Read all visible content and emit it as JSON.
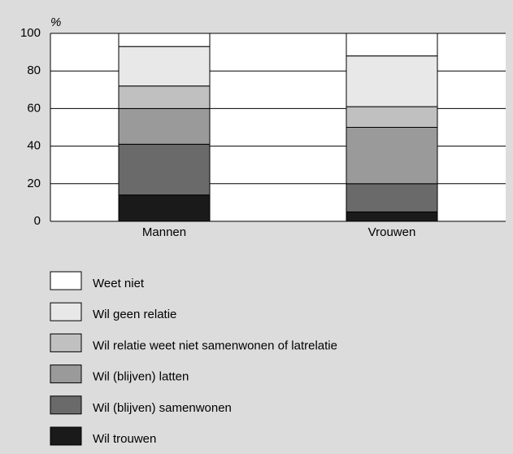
{
  "chart_data": {
    "type": "stacked_bar",
    "ylabel": "%",
    "categories": [
      "Mannen",
      "Vrouwen"
    ],
    "series": [
      {
        "name": "Wil trouwen",
        "color": "#1a1a1a",
        "values": [
          14,
          5
        ]
      },
      {
        "name": "Wil (blijven) samenwonen",
        "color": "#6a6a6a",
        "values": [
          27,
          15
        ]
      },
      {
        "name": "Wil (blijven) latten",
        "color": "#9a9a9a",
        "values": [
          19,
          30
        ]
      },
      {
        "name": "Wil relatie weet niet samenwonen of latrelatie",
        "color": "#c0c0c0",
        "values": [
          12,
          11
        ]
      },
      {
        "name": "Wil geen relatie",
        "color": "#e8e8e8",
        "values": [
          21,
          27
        ]
      },
      {
        "name": "Weet niet",
        "color": "#ffffff",
        "values": [
          7,
          12
        ]
      }
    ],
    "ylim": [
      0,
      100
    ],
    "yticks": [
      0,
      20,
      40,
      60,
      80,
      100
    ],
    "grid": true
  }
}
